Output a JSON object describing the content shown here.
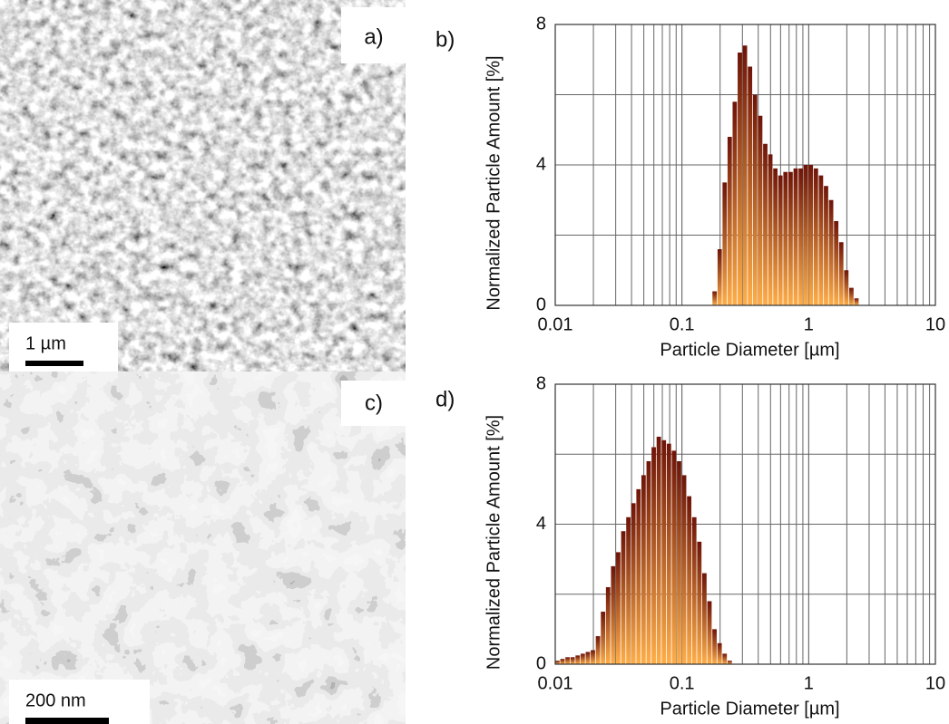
{
  "panels": [
    {
      "label": "a)",
      "scale_bar": "1 µm"
    },
    {
      "label": "c)",
      "scale_bar": "200 nm"
    }
  ],
  "chart_data": [
    {
      "type": "histogram",
      "panel_label": "b)",
      "x_label": "Particle Diameter [µm]",
      "y_label": "Normalized Particle Amount [%]",
      "log_x": true,
      "grid": true,
      "gradient": [
        "#6e1408",
        "#ffae48"
      ],
      "xlim": [
        0.01,
        10
      ],
      "ylim": [
        0,
        8
      ],
      "xticks": [
        0.01,
        0.1,
        1,
        10
      ],
      "yticks": [
        0,
        4,
        8
      ],
      "y_minor_ticks": [
        2,
        6
      ],
      "x_minor_ticks": [
        0.02,
        0.03,
        0.04,
        0.05,
        0.06,
        0.07,
        0.08,
        0.09,
        0.2,
        0.3,
        0.4,
        0.5,
        0.6,
        0.7,
        0.8,
        0.9,
        2,
        3,
        4,
        5,
        6,
        7,
        8,
        9
      ],
      "bins": [
        0.174,
        0.191,
        0.209,
        0.229,
        0.251,
        0.275,
        0.302,
        0.331,
        0.363,
        0.398,
        0.437,
        0.479,
        0.525,
        0.575,
        0.631,
        0.692,
        0.759,
        0.832,
        0.912,
        1.0,
        1.096,
        1.202,
        1.318,
        1.445,
        1.585,
        1.738,
        1.905,
        2.089,
        2.291,
        2.512
      ],
      "values": [
        0.4,
        1.6,
        3.5,
        4.8,
        5.8,
        7.2,
        7.4,
        6.8,
        6.0,
        5.4,
        4.6,
        4.3,
        3.9,
        3.7,
        3.8,
        3.8,
        3.9,
        3.9,
        4.0,
        4.0,
        3.9,
        3.7,
        3.4,
        3.0,
        2.4,
        1.8,
        1.0,
        0.5,
        0.2
      ]
    },
    {
      "type": "histogram",
      "panel_label": "d)",
      "x_label": "Particle Diameter [µm]",
      "y_label": "Normalized Particle Amount [%]",
      "log_x": true,
      "grid": true,
      "gradient": [
        "#6e1408",
        "#ffae48"
      ],
      "xlim": [
        0.01,
        10
      ],
      "ylim": [
        0,
        8
      ],
      "xticks": [
        0.01,
        0.1,
        1,
        10
      ],
      "yticks": [
        0,
        4,
        8
      ],
      "y_minor_ticks": [
        2,
        6
      ],
      "x_minor_ticks": [
        0.02,
        0.03,
        0.04,
        0.05,
        0.06,
        0.07,
        0.08,
        0.09,
        0.2,
        0.3,
        0.4,
        0.5,
        0.6,
        0.7,
        0.8,
        0.9,
        2,
        3,
        4,
        5,
        6,
        7,
        8,
        9
      ],
      "bins": [
        0.01,
        0.01096,
        0.01202,
        0.01318,
        0.01445,
        0.01585,
        0.01738,
        0.01905,
        0.02089,
        0.02291,
        0.02512,
        0.02754,
        0.0302,
        0.03311,
        0.03631,
        0.03981,
        0.04365,
        0.04786,
        0.05248,
        0.05754,
        0.0631,
        0.06918,
        0.07586,
        0.08318,
        0.0912,
        0.1,
        0.1096,
        0.1202,
        0.1318,
        0.1445,
        0.1585,
        0.1738,
        0.1905,
        0.2089,
        0.2291,
        0.2512
      ],
      "values": [
        0.1,
        0.15,
        0.2,
        0.2,
        0.25,
        0.3,
        0.35,
        0.4,
        0.8,
        1.5,
        2.2,
        2.8,
        3.2,
        3.8,
        4.2,
        4.6,
        5.0,
        5.4,
        5.8,
        6.2,
        6.5,
        6.4,
        6.3,
        6.1,
        5.8,
        5.4,
        4.8,
        4.2,
        3.5,
        2.6,
        1.8,
        1.0,
        0.6,
        0.3,
        0.1
      ]
    }
  ]
}
